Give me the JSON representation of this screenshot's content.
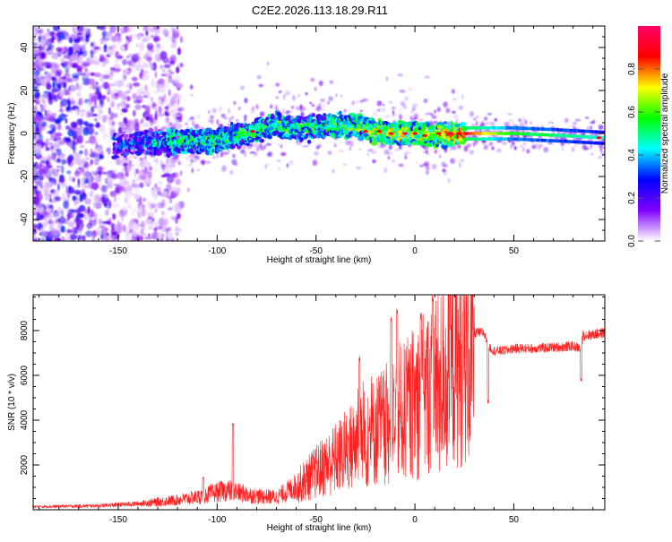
{
  "title": "C2E2.2026.113.18.29.R11",
  "chart_data": [
    {
      "type": "heatmap",
      "xlabel": "Height of straight line (km)",
      "ylabel": "Frequency (Hz)",
      "xlim": [
        -193,
        96
      ],
      "ylim": [
        -50,
        50
      ],
      "xticks": [
        -150,
        -100,
        -50,
        0,
        50
      ],
      "yticks": [
        -40,
        -20,
        0,
        20,
        40
      ],
      "colorbar": {
        "label": "Normalized spectral amplitude",
        "range": [
          0,
          1
        ],
        "ticks": [
          0.0,
          0.2,
          0.4,
          0.6,
          0.8
        ],
        "tick_labels": [
          "0.0",
          "0.2",
          "0.4",
          "0.6",
          "0.8"
        ],
        "colors": [
          "#ffffff",
          "#7f00ff",
          "#0000ff",
          "#00ffff",
          "#00ff00",
          "#ffff00",
          "#ff0000",
          "#ff0066"
        ]
      },
      "ridge": {
        "description": "main signal band (frequency center vs height)",
        "x": [
          -150,
          -135,
          -120,
          -100,
          -85,
          -70,
          -60,
          -50,
          -40,
          -30,
          -20,
          -10,
          0,
          10,
          25,
          50,
          75,
          95
        ],
        "y": [
          -6,
          -4,
          -4,
          -3,
          0,
          4,
          2,
          3,
          4,
          4,
          1,
          0,
          0,
          -1,
          0,
          0,
          -1,
          -2
        ],
        "amplitude": [
          0.25,
          0.35,
          0.5,
          0.5,
          0.5,
          0.55,
          0.5,
          0.5,
          0.55,
          0.55,
          0.7,
          0.7,
          0.65,
          0.7,
          0.85,
          0.55,
          0.5,
          0.45
        ]
      }
    },
    {
      "type": "line",
      "xlabel": "Height of straight line (km)",
      "ylabel": "SNR (10 * v/v)",
      "xlim": [
        -193,
        96
      ],
      "ylim": [
        0,
        9600
      ],
      "xticks": [
        -150,
        -100,
        -50,
        0,
        50
      ],
      "yticks": [
        2000,
        4000,
        6000,
        8000
      ],
      "color": "#ff2020",
      "envelope": {
        "x": [
          -193,
          -160,
          -140,
          -120,
          -110,
          -100,
          -95,
          -90,
          -80,
          -70,
          -60,
          -50,
          -40,
          -30,
          -25,
          -20,
          -15,
          -10,
          -5,
          0,
          5,
          10,
          15,
          20,
          25,
          30,
          35,
          37,
          40,
          45,
          50,
          60,
          70,
          80,
          84,
          85,
          88,
          96
        ],
        "y": [
          150,
          200,
          300,
          500,
          650,
          900,
          1000,
          900,
          700,
          650,
          1200,
          2000,
          2700,
          3500,
          3800,
          4200,
          4500,
          4800,
          5200,
          5700,
          6100,
          6500,
          7000,
          7600,
          7800,
          7900,
          7900,
          7300,
          7100,
          7100,
          7200,
          7200,
          7250,
          7300,
          7200,
          7800,
          7800,
          7900
        ]
      },
      "spikes": [
        {
          "x": -107,
          "y": 1450
        },
        {
          "x": -92,
          "y": 3900
        },
        {
          "x": -28,
          "y": 6900
        },
        {
          "x": -12,
          "y": 8650
        },
        {
          "x": -9,
          "y": 9000
        },
        {
          "x": 3,
          "y": 8800
        },
        {
          "x": 9,
          "y": 9600
        },
        {
          "x": 37,
          "y": 4900
        },
        {
          "x": 84,
          "y": 5900
        }
      ]
    }
  ]
}
